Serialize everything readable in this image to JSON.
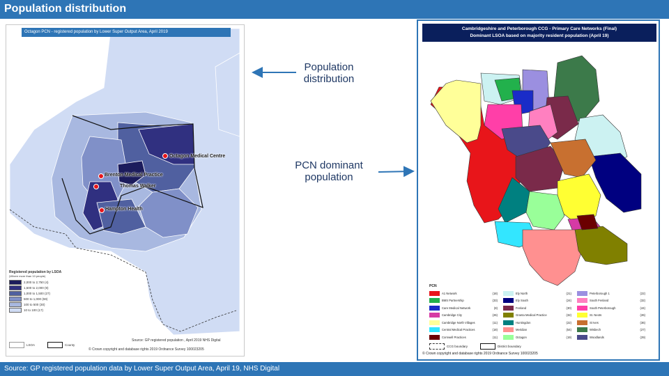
{
  "header": {
    "title": "Population distribution"
  },
  "footer": {
    "source": "Source: GP registered population data by Lower Super Output Area, April 19, NHS Digital"
  },
  "left_map": {
    "title": "Octagon PCN - registered population by Lower Super Output Area, April 2019",
    "practices": [
      {
        "name": "Octagon Medical Centre"
      },
      {
        "name": "Brenton Medical Practice"
      },
      {
        "name": "Thomas Walker"
      },
      {
        "name": "Hampton Health"
      }
    ],
    "legend_title": "Registered population by LSOA",
    "legend_subtitle": "(Where more than 10 people)",
    "legend_rows": [
      {
        "label": "2,000  to  2,750  (4)",
        "color": "#1c1c5c"
      },
      {
        "label": "1,500  to  2,000  (9)",
        "color": "#303080"
      },
      {
        "label": "1,000  to  1,500  (27)",
        "color": "#5060a0"
      },
      {
        "label": "500  to  1,000  (59)",
        "color": "#8090c8"
      },
      {
        "label": "100  to  500  (30)",
        "color": "#a8b8e0"
      },
      {
        "label": "10  to  100  (17)",
        "color": "#d0dcf4"
      }
    ],
    "keys": {
      "lsoa": "LSOA",
      "county": "County"
    },
    "source": "Source: GP registered population , April 2019 NHS Digital",
    "copyright": "© Crown copyright and database rights 2019 Ordnance Survey 100023205"
  },
  "labels": {
    "left": "Population distribution",
    "right": "PCN dominant population"
  },
  "right_map": {
    "title_line1": "Cambridgeshire and Peterborough CCG - Primary Care Networks (Final)",
    "title_line2": "Dominant LSOA based on majority resident population (April 19)",
    "legend_title": "PCN",
    "pcns": [
      {
        "name": "A1 Network",
        "count": "(18)",
        "color": "#e8151a"
      },
      {
        "name": "Ely North",
        "count": "(21)",
        "color": "#ccf2f2"
      },
      {
        "name": "Peterborough 1",
        "count": "(22)",
        "color": "#9b8fe0"
      },
      {
        "name": "BMS Partnership",
        "count": "(33)",
        "color": "#22b14c"
      },
      {
        "name": "Ely South",
        "count": "(24)",
        "color": "#000080"
      },
      {
        "name": "South Fenland",
        "count": "(32)",
        "color": "#ff80c0"
      },
      {
        "name": "Care Medical Network",
        "count": "(8)",
        "color": "#1a2cc8"
      },
      {
        "name": "Fenland",
        "count": "(30)",
        "color": "#7a2a4a"
      },
      {
        "name": "South Peterborough",
        "count": "(44)",
        "color": "#ff3fa8"
      },
      {
        "name": "Cambridge City",
        "count": "(26)",
        "color": "#d63aa5"
      },
      {
        "name": "Granta Medical Practice",
        "count": "(32)",
        "color": "#808000"
      },
      {
        "name": "St. Neots",
        "count": "(26)",
        "color": "#ffff33"
      },
      {
        "name": "Cambridge North Villages",
        "count": "(11)",
        "color": "#ffff99"
      },
      {
        "name": "Huntingdon",
        "count": "(22)",
        "color": "#008080"
      },
      {
        "name": "St Ives",
        "count": "(36)",
        "color": "#c87030"
      },
      {
        "name": "Central Medical Practices",
        "count": "(18)",
        "color": "#33e6ff"
      },
      {
        "name": "Meridian",
        "count": "(54)",
        "color": "#ff9090"
      },
      {
        "name": "Wisbech",
        "count": "(27)",
        "color": "#3c7a4a"
      },
      {
        "name": "Cornwell Practices",
        "count": "(11)",
        "color": "#6b0000"
      },
      {
        "name": "Octagon",
        "count": "(19)",
        "color": "#99ff99"
      },
      {
        "name": "Woodlands",
        "count": "(29)",
        "color": "#4a4a8a"
      }
    ],
    "keys": {
      "ccg": "CCG boundary",
      "district": "District boundary"
    },
    "copyright": "© Crown copyright and database rights 2019 Ordnance Survey 100023205"
  },
  "colors": {
    "bar": "#2e75b6",
    "arrow": "#2e75b6"
  }
}
